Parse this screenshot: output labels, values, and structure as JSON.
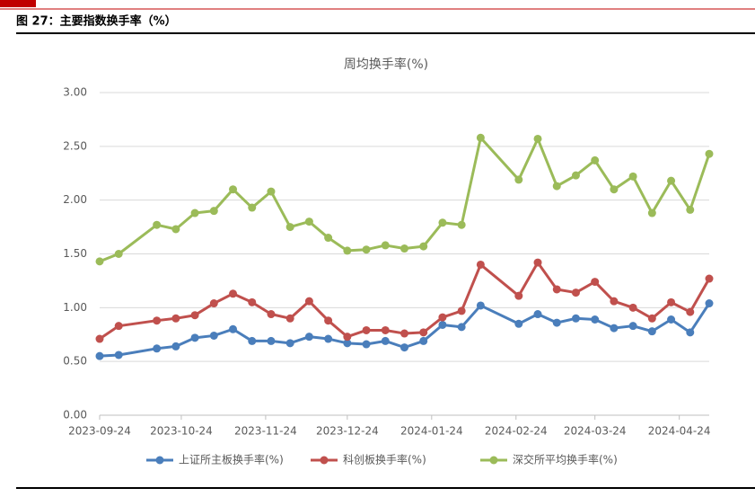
{
  "header": {
    "title": "图 27：主要指数换手率（%）"
  },
  "chart_data": {
    "type": "line",
    "title": "周均换手率(%)",
    "x": [
      "2023-09-24",
      "2023-10-01",
      "2023-10-15",
      "2023-10-22",
      "2023-10-29",
      "2023-11-05",
      "2023-11-12",
      "2023-11-19",
      "2023-11-26",
      "2023-12-03",
      "2023-12-10",
      "2023-12-17",
      "2023-12-24",
      "2023-12-31",
      "2024-01-07",
      "2024-01-14",
      "2024-01-21",
      "2024-01-28",
      "2024-02-04",
      "2024-02-11",
      "2024-02-25",
      "2024-03-03",
      "2024-03-10",
      "2024-03-17",
      "2024-03-24",
      "2024-03-31",
      "2024-04-07",
      "2024-04-14",
      "2024-04-21",
      "2024-04-28",
      "2024-05-05"
    ],
    "series": [
      {
        "name": "上证所主板换手率(%)",
        "color": "#4a7ebb",
        "values": [
          0.55,
          0.56,
          0.62,
          0.64,
          0.72,
          0.74,
          0.8,
          0.69,
          0.69,
          0.67,
          0.73,
          0.71,
          0.67,
          0.66,
          0.69,
          0.63,
          0.69,
          0.84,
          0.82,
          1.02,
          0.85,
          0.94,
          0.86,
          0.9,
          0.89,
          0.81,
          0.83,
          0.78,
          0.89,
          0.77,
          1.04
        ]
      },
      {
        "name": "科创板换手率(%)",
        "color": "#c0504d",
        "values": [
          0.71,
          0.83,
          0.88,
          0.9,
          0.93,
          1.04,
          1.13,
          1.05,
          0.94,
          0.9,
          1.06,
          0.88,
          0.73,
          0.79,
          0.79,
          0.76,
          0.77,
          0.91,
          0.97,
          1.4,
          1.11,
          1.42,
          1.17,
          1.14,
          1.24,
          1.06,
          1.0,
          0.9,
          1.05,
          0.96,
          1.27
        ]
      },
      {
        "name": "深交所平均换手率(%)",
        "color": "#9bbb59",
        "values": [
          1.43,
          1.5,
          1.77,
          1.73,
          1.88,
          1.9,
          2.1,
          1.93,
          2.08,
          1.75,
          1.8,
          1.65,
          1.53,
          1.54,
          1.58,
          1.55,
          1.57,
          1.79,
          1.77,
          2.58,
          2.19,
          2.57,
          2.13,
          2.23,
          2.37,
          2.1,
          2.22,
          1.88,
          2.18,
          1.91,
          2.43
        ]
      }
    ],
    "xlim": [
      "2023-09-24",
      "2024-05-05"
    ],
    "xticks": [
      "2023-09-24",
      "2023-10-24",
      "2023-11-24",
      "2023-12-24",
      "2024-01-24",
      "2024-02-24",
      "2024-03-24",
      "2024-04-24"
    ],
    "ylim": [
      0,
      3
    ],
    "yticks": [
      {
        "value": 0,
        "label": "0.00"
      },
      {
        "value": 0.5,
        "label": "0.50"
      },
      {
        "value": 1,
        "label": "1.00"
      },
      {
        "value": 1.5,
        "label": "1.50"
      },
      {
        "value": 2,
        "label": "2.00"
      },
      {
        "value": 2.5,
        "label": "2.50"
      },
      {
        "value": 3,
        "label": "3.00"
      }
    ],
    "grid": true,
    "legend": "bottom"
  }
}
